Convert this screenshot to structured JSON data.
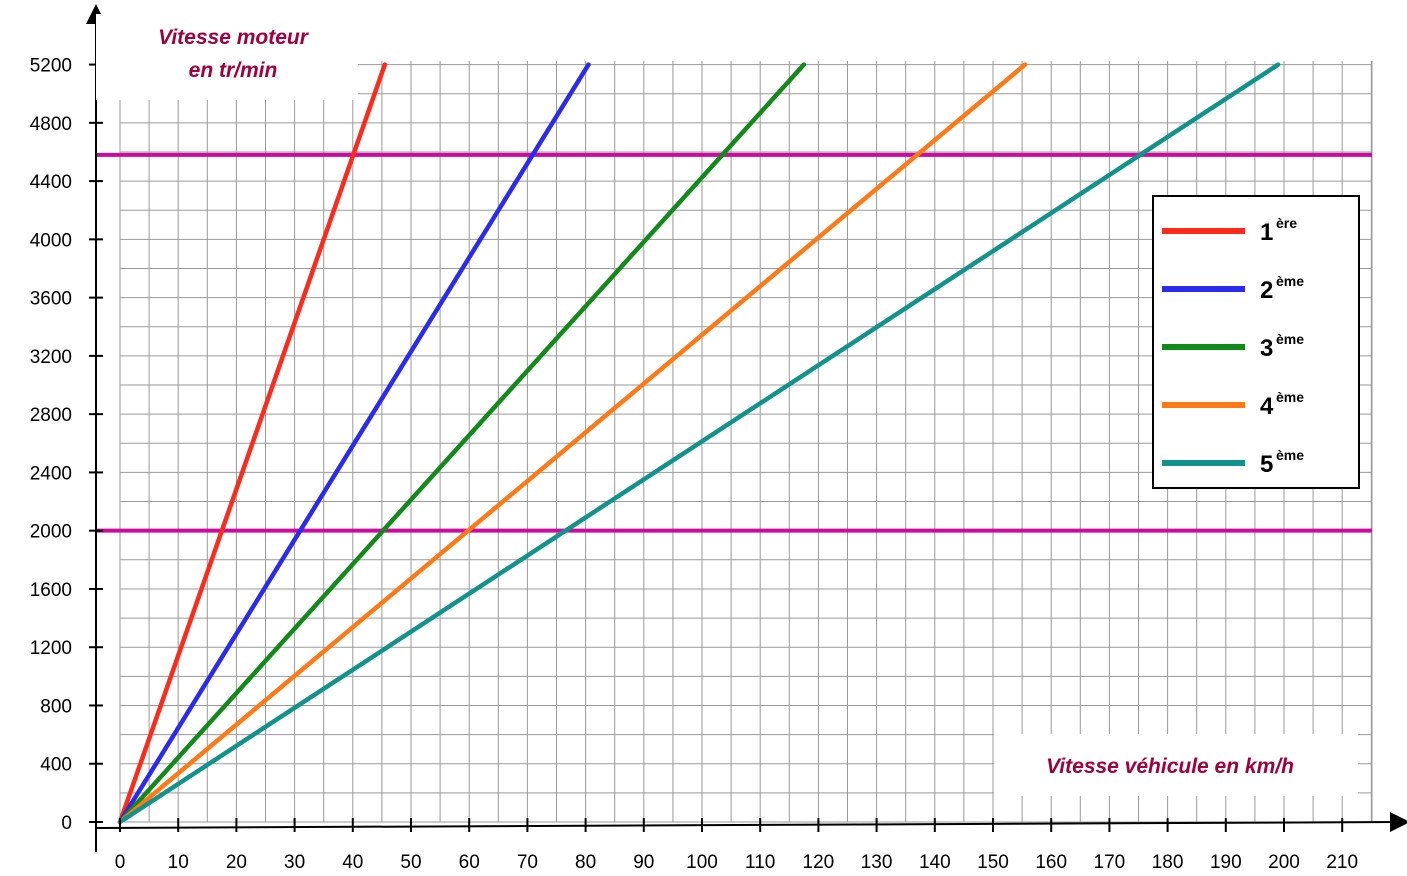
{
  "chart_data": {
    "type": "line",
    "x_label": "Vitesse véhicule en km/h",
    "y_label_line1": "Vitesse moteur",
    "y_label_line2": "en tr/min",
    "xlim": [
      0,
      215
    ],
    "ylim": [
      0,
      5200
    ],
    "x_ticks": [
      "0",
      "10",
      "20",
      "30",
      "40",
      "50",
      "60",
      "70",
      "80",
      "90",
      "100",
      "110",
      "120",
      "130",
      "140",
      "150",
      "160",
      "170",
      "180",
      "190",
      "200",
      "210"
    ],
    "y_ticks": [
      "0",
      "400",
      "800",
      "1200",
      "1600",
      "2000",
      "2400",
      "2800",
      "3200",
      "3600",
      "4000",
      "4400",
      "4800",
      "5200"
    ],
    "grid": true,
    "legend_position": "right",
    "series": [
      {
        "name": "1",
        "sup": "ère",
        "color": "#ff2a1a",
        "x": [
          0,
          45.5
        ],
        "y": [
          0,
          5200
        ]
      },
      {
        "name": "2",
        "sup": "ème",
        "color": "#2b2bef",
        "x": [
          0,
          80.5
        ],
        "y": [
          0,
          5200
        ]
      },
      {
        "name": "3",
        "sup": "ème",
        "color": "#118a1a",
        "x": [
          0,
          117.5
        ],
        "y": [
          0,
          5200
        ]
      },
      {
        "name": "4",
        "sup": "ème",
        "color": "#ff7a16",
        "x": [
          0,
          155.5
        ],
        "y": [
          0,
          5200
        ]
      },
      {
        "name": "5",
        "sup": "ème",
        "color": "#12928c",
        "x": [
          0,
          199
        ],
        "y": [
          0,
          5200
        ]
      }
    ],
    "reference_lines": [
      {
        "y": 4580,
        "color": "#cc0aa0"
      },
      {
        "y": 2000,
        "color": "#cc0aa0"
      }
    ]
  }
}
